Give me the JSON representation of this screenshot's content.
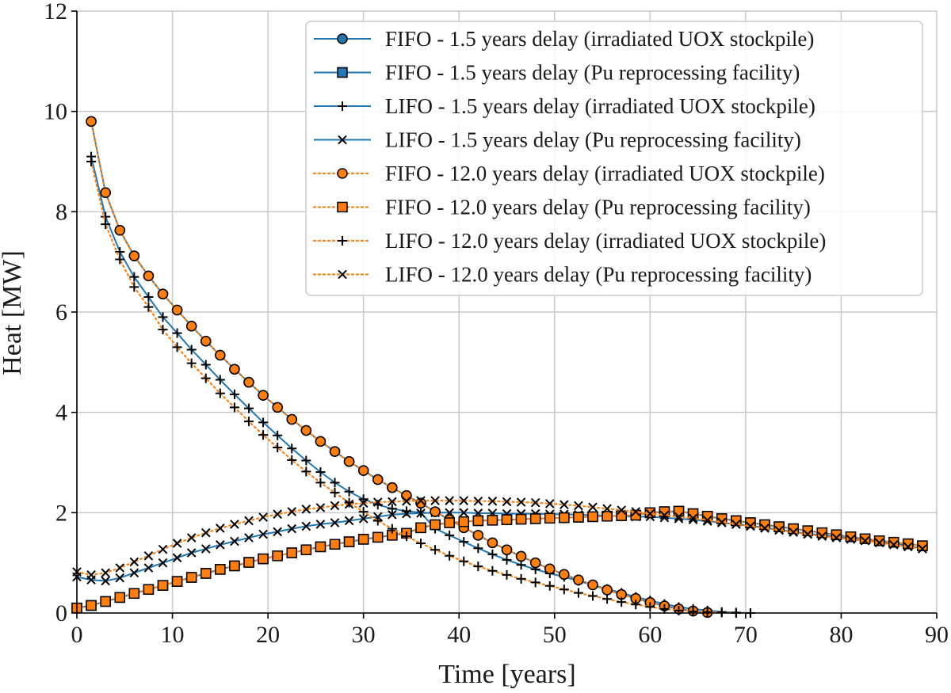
{
  "chart_data": {
    "type": "line",
    "xlabel": "Time [years]",
    "ylabel": "Heat [MW]",
    "xlim": [
      0,
      90
    ],
    "ylim": [
      0,
      12
    ],
    "xticks": [
      0,
      10,
      20,
      30,
      40,
      50,
      60,
      70,
      80,
      90
    ],
    "yticks": [
      0,
      2,
      4,
      6,
      8,
      10,
      12
    ],
    "grid": true,
    "legend_placement": "top-right",
    "colors": {
      "blue": "#1f77b4",
      "orange": "#ff7f0e"
    },
    "series": [
      {
        "name": "FIFO - 1.5 years delay (irradiated UOX stockpile)",
        "color": "#1f77b4",
        "linestyle": "solid",
        "marker": "circle",
        "x": [
          1.5,
          3,
          4.5,
          6,
          7.5,
          9,
          10.5,
          12,
          13.5,
          15,
          16.5,
          18,
          19.5,
          21,
          22.5,
          24,
          25.5,
          27,
          28.5,
          30,
          31.5,
          33,
          34.5,
          36,
          37.5,
          39,
          40.5,
          42,
          43.5,
          45,
          46.5,
          48,
          49.5,
          51,
          52.5,
          54,
          55.5,
          57,
          58.5,
          60,
          61.5,
          63,
          64.5,
          66
        ],
        "y": [
          9.8,
          8.38,
          7.63,
          7.12,
          6.72,
          6.36,
          6.04,
          5.72,
          5.42,
          5.14,
          4.86,
          4.6,
          4.34,
          4.1,
          3.86,
          3.64,
          3.42,
          3.22,
          3.02,
          2.84,
          2.66,
          2.5,
          2.34,
          2.19,
          2.02,
          1.86,
          1.7,
          1.55,
          1.4,
          1.26,
          1.13,
          1.0,
          0.88,
          0.77,
          0.66,
          0.56,
          0.46,
          0.37,
          0.29,
          0.21,
          0.14,
          0.08,
          0.04,
          0.01
        ]
      },
      {
        "name": "FIFO - 1.5 years delay (Pu reprocessing facility)",
        "color": "#1f77b4",
        "linestyle": "solid",
        "marker": "square",
        "x": [
          0,
          1.5,
          3,
          4.5,
          6,
          7.5,
          9,
          10.5,
          12,
          13.5,
          15,
          16.5,
          18,
          19.5,
          21,
          22.5,
          24,
          25.5,
          27,
          28.5,
          30,
          31.5,
          33,
          34.5,
          36,
          37.5,
          39,
          40.5,
          42,
          43.5,
          45,
          46.5,
          48,
          49.5,
          51,
          52.5,
          54,
          55.5,
          57,
          58.5,
          60,
          61.5,
          63,
          64.5,
          66,
          67.5,
          69,
          70.5,
          72,
          73.5,
          75,
          76.5,
          78,
          79.5,
          81,
          82.5,
          84,
          85.5,
          87,
          88.5
        ],
        "y": [
          0.1,
          0.15,
          0.23,
          0.31,
          0.39,
          0.47,
          0.55,
          0.63,
          0.71,
          0.79,
          0.87,
          0.94,
          1.01,
          1.08,
          1.14,
          1.2,
          1.26,
          1.32,
          1.37,
          1.42,
          1.47,
          1.51,
          1.55,
          1.59,
          1.7,
          1.76,
          1.8,
          1.82,
          1.84,
          1.85,
          1.86,
          1.87,
          1.88,
          1.89,
          1.9,
          1.91,
          1.92,
          1.93,
          1.94,
          1.95,
          2.0,
          2.02,
          2.03,
          1.98,
          1.93,
          1.88,
          1.84,
          1.8,
          1.76,
          1.72,
          1.68,
          1.64,
          1.6,
          1.56,
          1.52,
          1.48,
          1.44,
          1.41,
          1.38,
          1.34
        ]
      },
      {
        "name": "LIFO - 1.5 years delay (irradiated UOX stockpile)",
        "color": "#1f77b4",
        "linestyle": "solid",
        "marker": "plus",
        "x": [
          1.5,
          3,
          4.5,
          6,
          7.5,
          9,
          10.5,
          12,
          13.5,
          15,
          16.5,
          18,
          19.5,
          21,
          22.5,
          24,
          25.5,
          27,
          28.5,
          30,
          31.5,
          33,
          34.5,
          36,
          37.5,
          39,
          40.5,
          42,
          43.5,
          45,
          46.5,
          48,
          49.5,
          51,
          52.5,
          54,
          55.5,
          57,
          58.5,
          60,
          61.5,
          63,
          64.5,
          66,
          67.5,
          69,
          70.5
        ],
        "y": [
          9.1,
          7.9,
          7.2,
          6.7,
          6.3,
          5.9,
          5.58,
          5.25,
          4.95,
          4.65,
          4.36,
          4.08,
          3.8,
          3.54,
          3.28,
          3.04,
          2.81,
          2.6,
          2.42,
          2.27,
          2.16,
          2.08,
          2.03,
          2.0,
          1.68,
          1.55,
          1.42,
          1.29,
          1.17,
          1.06,
          0.96,
          0.87,
          0.79,
          0.72,
          0.64,
          0.56,
          0.48,
          0.4,
          0.32,
          0.25,
          0.18,
          0.12,
          0.08,
          0.05,
          0.02,
          0.01,
          0.0
        ]
      },
      {
        "name": "LIFO - 1.5 years delay (Pu reprocessing facility)",
        "color": "#1f77b4",
        "linestyle": "solid",
        "marker": "x",
        "x": [
          0,
          1.5,
          3,
          4.5,
          6,
          7.5,
          9,
          10.5,
          12,
          13.5,
          15,
          16.5,
          18,
          19.5,
          21,
          22.5,
          24,
          25.5,
          27,
          28.5,
          30,
          31.5,
          33,
          34.5,
          36,
          37.5,
          39,
          40.5,
          42,
          43.5,
          45,
          46.5,
          48,
          49.5,
          51,
          52.5,
          54,
          55.5,
          57,
          58.5,
          60,
          61.5,
          63,
          64.5,
          66,
          67.5,
          69,
          70.5,
          72,
          73.5,
          75,
          76.5,
          78,
          79.5,
          81,
          82.5,
          84,
          85.5,
          87,
          88.5
        ],
        "y": [
          0.72,
          0.66,
          0.64,
          0.7,
          0.8,
          0.9,
          1.0,
          1.1,
          1.2,
          1.28,
          1.36,
          1.43,
          1.5,
          1.57,
          1.62,
          1.68,
          1.73,
          1.77,
          1.8,
          1.84,
          1.88,
          1.92,
          1.96,
          1.98,
          1.99,
          2.0,
          2.0,
          2.0,
          1.99,
          1.99,
          1.98,
          1.98,
          1.98,
          1.97,
          1.97,
          1.96,
          1.95,
          1.94,
          1.93,
          1.92,
          1.92,
          1.9,
          1.88,
          1.86,
          1.83,
          1.8,
          1.77,
          1.74,
          1.7,
          1.66,
          1.62,
          1.58,
          1.55,
          1.52,
          1.49,
          1.46,
          1.42,
          1.38,
          1.34,
          1.28
        ]
      },
      {
        "name": "FIFO - 12.0 years delay (irradiated UOX stockpile)",
        "color": "#ff7f0e",
        "linestyle": "dotted",
        "marker": "circle",
        "x": [
          1.5,
          3,
          4.5,
          6,
          7.5,
          9,
          10.5,
          12,
          13.5,
          15,
          16.5,
          18,
          19.5,
          21,
          22.5,
          24,
          25.5,
          27,
          28.5,
          30,
          31.5,
          33,
          34.5,
          36,
          37.5,
          39,
          40.5,
          42,
          43.5,
          45,
          46.5,
          48,
          49.5,
          51,
          52.5,
          54,
          55.5,
          57,
          58.5,
          60,
          61.5,
          63,
          64.5,
          66
        ],
        "y": [
          9.8,
          8.38,
          7.63,
          7.12,
          6.72,
          6.36,
          6.04,
          5.72,
          5.42,
          5.14,
          4.86,
          4.6,
          4.34,
          4.1,
          3.86,
          3.64,
          3.42,
          3.22,
          3.02,
          2.84,
          2.66,
          2.5,
          2.34,
          2.19,
          2.02,
          1.86,
          1.7,
          1.55,
          1.4,
          1.26,
          1.13,
          1.0,
          0.88,
          0.77,
          0.66,
          0.56,
          0.46,
          0.37,
          0.29,
          0.21,
          0.14,
          0.08,
          0.04,
          0.01
        ]
      },
      {
        "name": "FIFO - 12.0 years delay (Pu reprocessing facility)",
        "color": "#ff7f0e",
        "linestyle": "dotted",
        "marker": "square",
        "x": [
          0,
          1.5,
          3,
          4.5,
          6,
          7.5,
          9,
          10.5,
          12,
          13.5,
          15,
          16.5,
          18,
          19.5,
          21,
          22.5,
          24,
          25.5,
          27,
          28.5,
          30,
          31.5,
          33,
          34.5,
          36,
          37.5,
          39,
          40.5,
          42,
          43.5,
          45,
          46.5,
          48,
          49.5,
          51,
          52.5,
          54,
          55.5,
          57,
          58.5,
          60,
          61.5,
          63,
          64.5,
          66,
          67.5,
          69,
          70.5,
          72,
          73.5,
          75,
          76.5,
          78,
          79.5,
          81,
          82.5,
          84,
          85.5,
          87,
          88.5
        ],
        "y": [
          0.1,
          0.15,
          0.23,
          0.31,
          0.39,
          0.47,
          0.55,
          0.63,
          0.71,
          0.79,
          0.87,
          0.94,
          1.01,
          1.08,
          1.14,
          1.2,
          1.26,
          1.32,
          1.37,
          1.42,
          1.47,
          1.51,
          1.55,
          1.59,
          1.7,
          1.76,
          1.8,
          1.82,
          1.84,
          1.85,
          1.86,
          1.87,
          1.88,
          1.89,
          1.9,
          1.91,
          1.92,
          1.93,
          1.94,
          1.95,
          2.0,
          2.02,
          2.03,
          1.98,
          1.93,
          1.88,
          1.84,
          1.8,
          1.76,
          1.72,
          1.68,
          1.64,
          1.6,
          1.56,
          1.52,
          1.48,
          1.44,
          1.41,
          1.38,
          1.34
        ]
      },
      {
        "name": "LIFO - 12.0 years delay (irradiated UOX stockpile)",
        "color": "#ff7f0e",
        "linestyle": "dotted",
        "marker": "plus",
        "x": [
          1.5,
          3,
          4.5,
          6,
          7.5,
          9,
          10.5,
          12,
          13.5,
          15,
          16.5,
          18,
          19.5,
          21,
          22.5,
          24,
          25.5,
          27,
          28.5,
          30,
          31.5,
          33,
          34.5,
          36,
          37.5,
          39,
          40.5,
          42,
          43.5,
          45,
          46.5,
          48,
          49.5,
          51,
          52.5,
          54,
          55.5,
          57,
          58.5,
          60,
          61.5,
          63,
          64.5,
          66,
          67.5,
          69,
          70.5
        ],
        "y": [
          9.0,
          7.75,
          7.05,
          6.5,
          6.1,
          5.65,
          5.3,
          4.98,
          4.68,
          4.38,
          4.1,
          3.82,
          3.55,
          3.3,
          3.05,
          2.82,
          2.6,
          2.4,
          2.2,
          2.02,
          1.84,
          1.68,
          1.53,
          1.39,
          1.26,
          1.14,
          1.03,
          0.93,
          0.84,
          0.76,
          0.68,
          0.61,
          0.54,
          0.47,
          0.4,
          0.34,
          0.28,
          0.22,
          0.17,
          0.12,
          0.08,
          0.05,
          0.03,
          0.02,
          0.01,
          0.0,
          0.0
        ]
      },
      {
        "name": "LIFO - 12.0 years delay (Pu reprocessing facility)",
        "color": "#ff7f0e",
        "linestyle": "dotted",
        "marker": "x",
        "x": [
          0,
          1.5,
          3,
          4.5,
          6,
          7.5,
          9,
          10.5,
          12,
          13.5,
          15,
          16.5,
          18,
          19.5,
          21,
          22.5,
          24,
          25.5,
          27,
          28.5,
          30,
          31.5,
          33,
          34.5,
          36,
          37.5,
          39,
          40.5,
          42,
          43.5,
          45,
          46.5,
          48,
          49.5,
          51,
          52.5,
          54,
          55.5,
          57,
          58.5,
          60,
          61.5,
          63,
          64.5,
          66,
          67.5,
          69,
          70.5,
          72,
          73.5,
          75,
          76.5,
          78,
          79.5,
          81,
          82.5,
          84,
          85.5,
          87,
          88.5
        ],
        "y": [
          0.82,
          0.76,
          0.8,
          0.9,
          1.02,
          1.14,
          1.27,
          1.39,
          1.5,
          1.6,
          1.69,
          1.77,
          1.84,
          1.91,
          1.97,
          2.02,
          2.07,
          2.1,
          2.14,
          2.17,
          2.19,
          2.21,
          2.22,
          2.23,
          2.24,
          2.24,
          2.24,
          2.24,
          2.23,
          2.23,
          2.22,
          2.21,
          2.2,
          2.18,
          2.16,
          2.14,
          2.11,
          2.08,
          2.05,
          2.02,
          1.98,
          1.95,
          1.92,
          1.89,
          1.85,
          1.81,
          1.77,
          1.73,
          1.69,
          1.65,
          1.61,
          1.57,
          1.53,
          1.5,
          1.47,
          1.44,
          1.4,
          1.36,
          1.32,
          1.28
        ]
      }
    ]
  }
}
